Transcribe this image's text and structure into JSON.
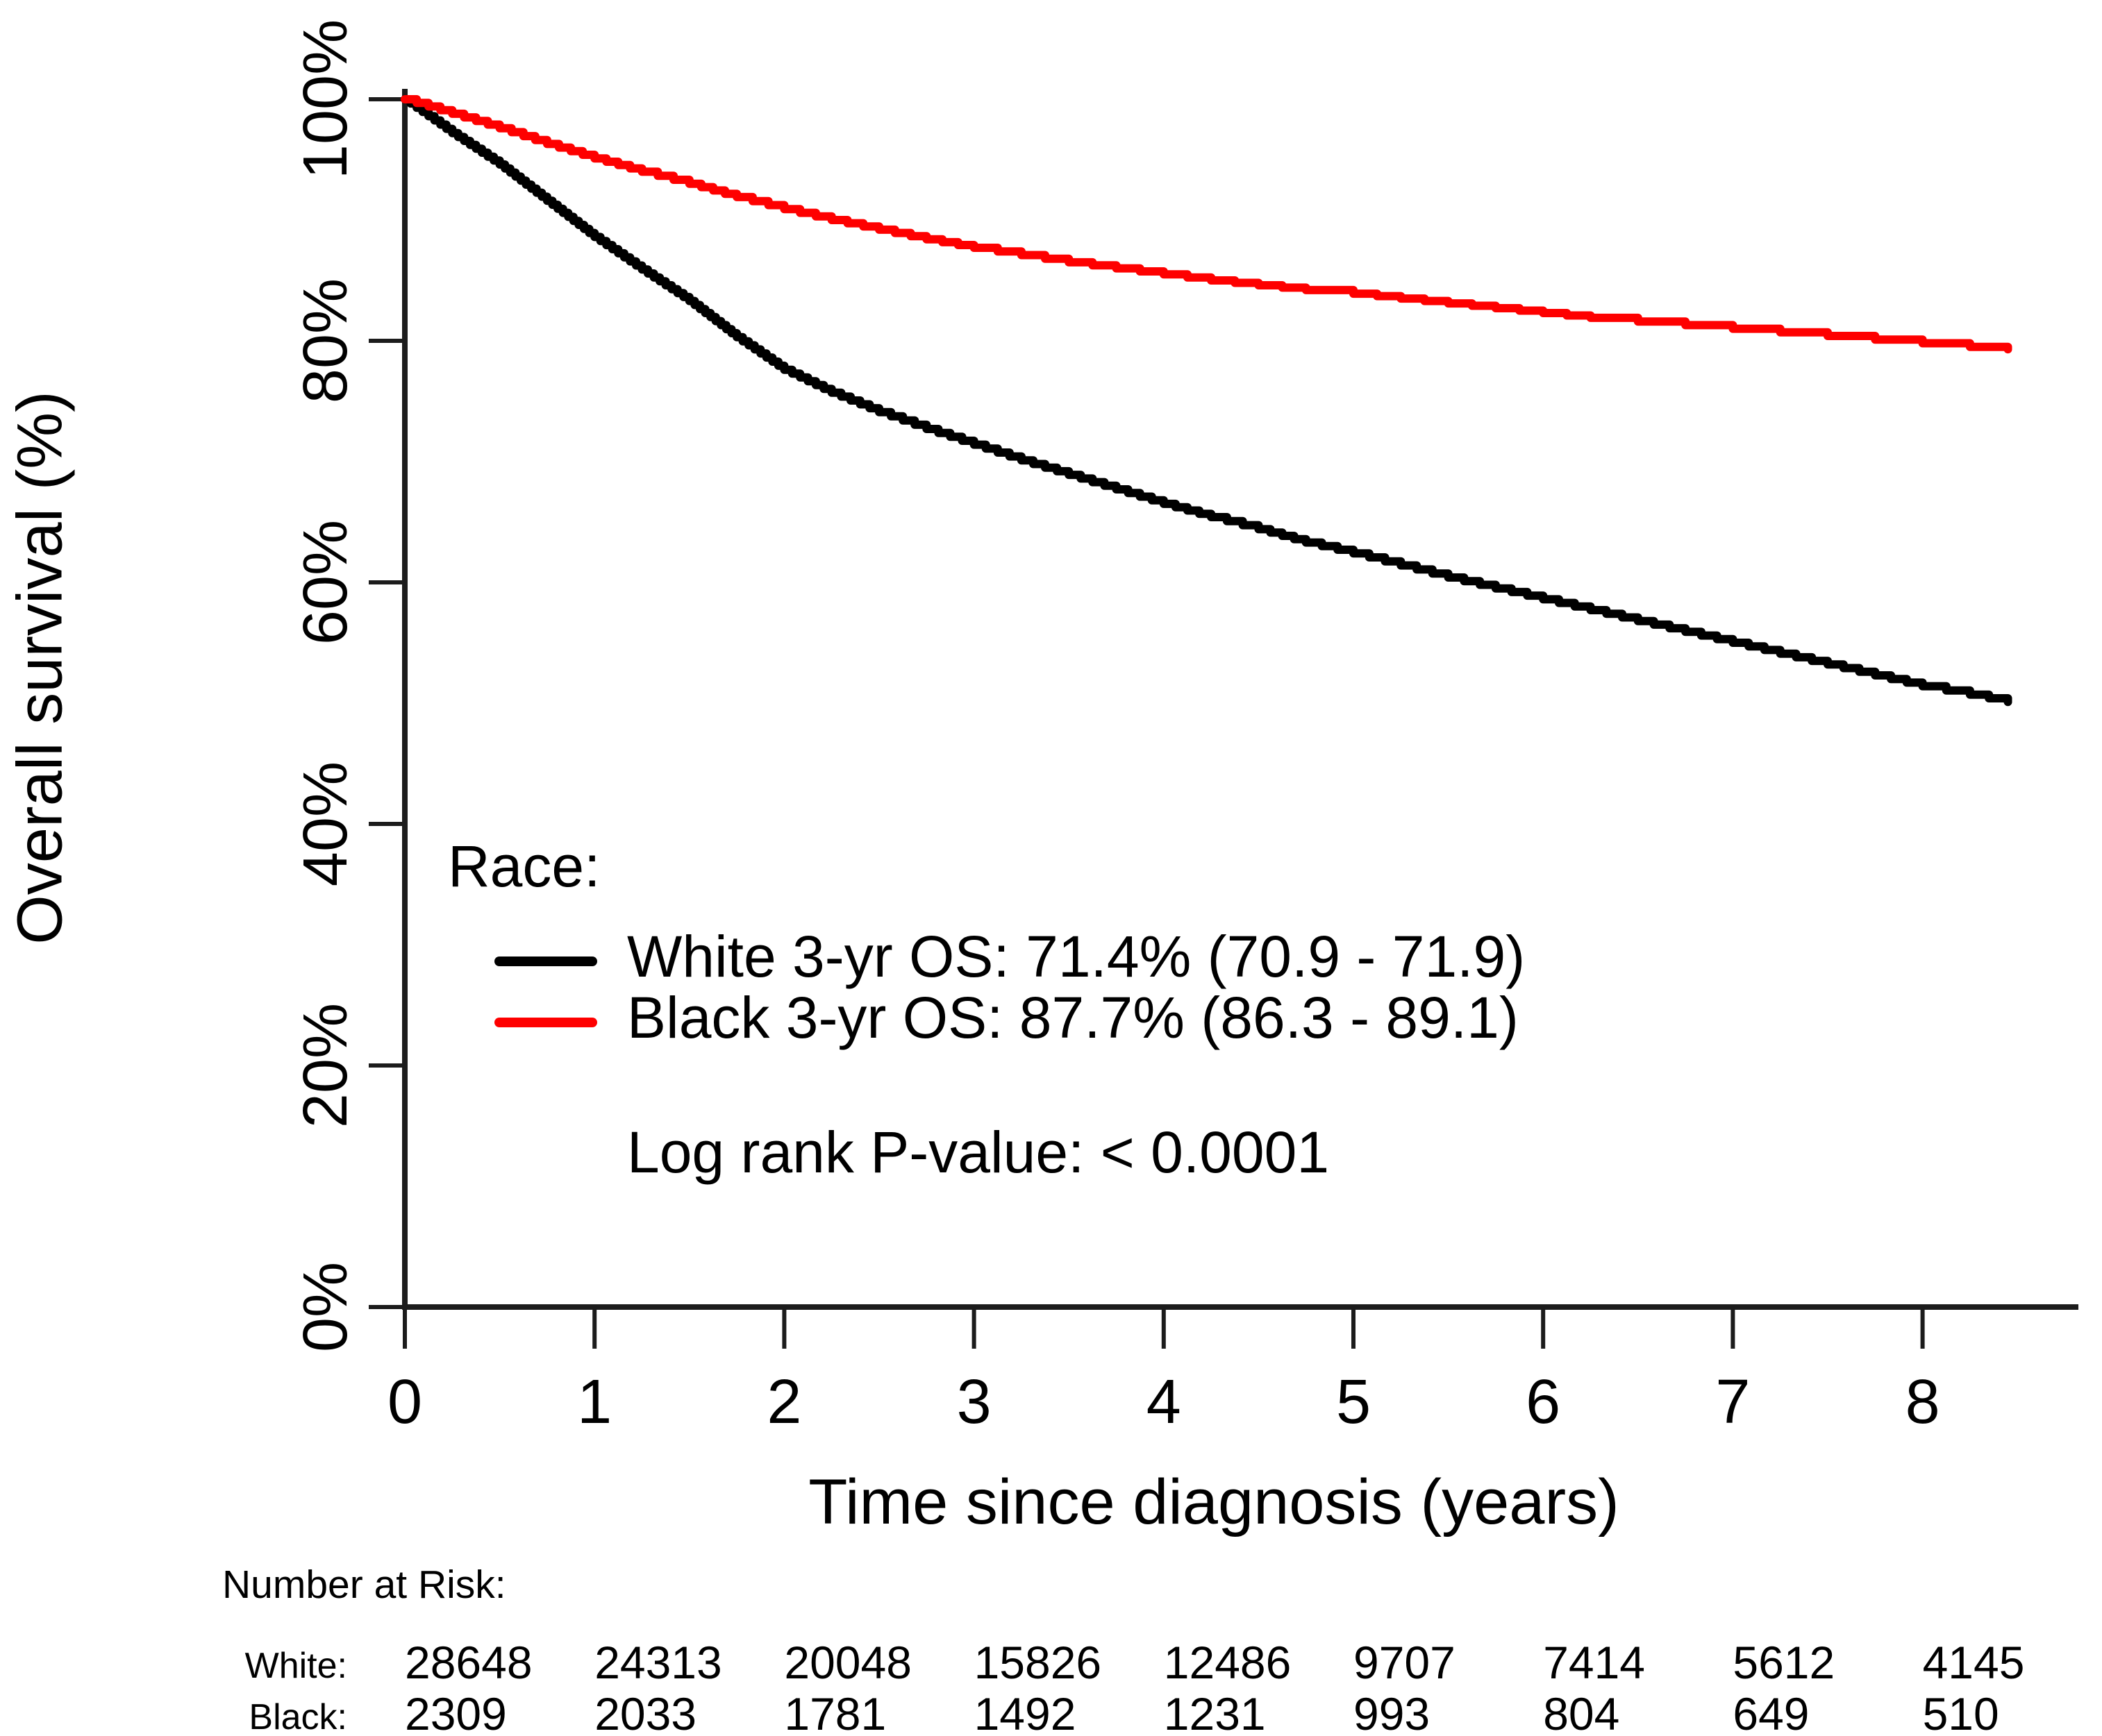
{
  "chart_data": {
    "type": "line",
    "subtype": "kaplan-meier-survival",
    "title": "",
    "xlabel": "Time since diagnosis (years)",
    "ylabel": "Overall survival (%)",
    "legend_title": "Race:",
    "pvalue_text": "Log rank P-value: < 0.0001",
    "xlim": [
      0,
      8.8
    ],
    "ylim": [
      0,
      100
    ],
    "grid": false,
    "legend_position": "inside-left-middle",
    "x_tick_values": [
      0,
      1,
      2,
      3,
      4,
      5,
      6,
      7,
      8
    ],
    "x_tick_labels": [
      "0",
      "1",
      "2",
      "3",
      "4",
      "5",
      "6",
      "7",
      "8"
    ],
    "y_tick_values": [
      0,
      20,
      40,
      60,
      80,
      100
    ],
    "y_tick_labels": [
      "0%",
      "20%",
      "40%",
      "60%",
      "80%",
      "100%"
    ],
    "series": [
      {
        "name": "White",
        "color": "#000000",
        "annotation": "White 3-yr OS: 71.4% (70.9 - 71.9)",
        "points": [
          [
            0,
            100
          ],
          [
            0.25,
            97.2
          ],
          [
            0.5,
            94.6
          ],
          [
            0.75,
            91.6
          ],
          [
            1,
            88.6
          ],
          [
            1.25,
            85.9
          ],
          [
            1.5,
            83.3
          ],
          [
            1.75,
            80.3
          ],
          [
            2,
            77.6
          ],
          [
            2.25,
            75.7
          ],
          [
            2.5,
            74.1
          ],
          [
            2.75,
            72.7
          ],
          [
            3,
            71.4
          ],
          [
            3.25,
            70.1
          ],
          [
            3.5,
            68.9
          ],
          [
            3.75,
            67.7
          ],
          [
            4,
            66.5
          ],
          [
            4.25,
            65.4
          ],
          [
            4.5,
            64.4
          ],
          [
            4.75,
            63.3
          ],
          [
            5,
            62.4
          ],
          [
            5.25,
            61.4
          ],
          [
            5.5,
            60.4
          ],
          [
            5.75,
            59.5
          ],
          [
            6,
            58.6
          ],
          [
            6.25,
            57.7
          ],
          [
            6.5,
            56.8
          ],
          [
            6.75,
            55.9
          ],
          [
            7,
            55.0
          ],
          [
            7.25,
            54.1
          ],
          [
            7.5,
            53.2
          ],
          [
            7.75,
            52.3
          ],
          [
            8,
            51.4
          ],
          [
            8.25,
            50.7
          ],
          [
            8.45,
            50.1
          ]
        ]
      },
      {
        "name": "Black",
        "color": "#fe0000",
        "annotation": "Black 3-yr OS: 87.7% (86.3 - 89.1)",
        "points": [
          [
            0,
            100
          ],
          [
            0.25,
            98.8
          ],
          [
            0.5,
            97.6
          ],
          [
            0.75,
            96.3
          ],
          [
            1,
            95.1
          ],
          [
            1.25,
            94.0
          ],
          [
            1.5,
            93.0
          ],
          [
            1.75,
            91.9
          ],
          [
            2,
            90.9
          ],
          [
            2.25,
            90.0
          ],
          [
            2.5,
            89.2
          ],
          [
            2.75,
            88.4
          ],
          [
            3,
            87.7
          ],
          [
            3.25,
            87.1
          ],
          [
            3.5,
            86.5
          ],
          [
            3.75,
            86.0
          ],
          [
            4,
            85.5
          ],
          [
            4.25,
            85.0
          ],
          [
            4.5,
            84.6
          ],
          [
            4.75,
            84.2
          ],
          [
            5,
            83.9
          ],
          [
            5.25,
            83.5
          ],
          [
            5.5,
            83.1
          ],
          [
            5.75,
            82.7
          ],
          [
            6,
            82.3
          ],
          [
            6.25,
            81.9
          ],
          [
            6.5,
            81.6
          ],
          [
            6.75,
            81.3
          ],
          [
            7,
            81.0
          ],
          [
            7.25,
            80.7
          ],
          [
            7.5,
            80.4
          ],
          [
            7.75,
            80.1
          ],
          [
            8,
            79.8
          ],
          [
            8.25,
            79.5
          ],
          [
            8.45,
            79.3
          ]
        ]
      }
    ]
  },
  "risk_table": {
    "title": "Number at Risk:",
    "times": [
      0,
      1,
      2,
      3,
      4,
      5,
      6,
      7,
      8
    ],
    "rows": [
      {
        "label": "White:",
        "values": [
          "28648",
          "24313",
          "20048",
          "15826",
          "12486",
          "9707",
          "7414",
          "5612",
          "4145"
        ]
      },
      {
        "label": "Black:",
        "values": [
          "2309",
          "2033",
          "1781",
          "1492",
          "1231",
          "993",
          "804",
          "649",
          "510"
        ]
      }
    ]
  }
}
